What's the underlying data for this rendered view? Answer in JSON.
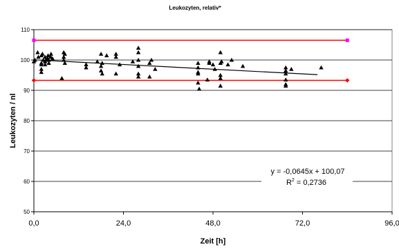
{
  "chart_data": {
    "type": "scatter",
    "title": "Leukozyten, relativ*",
    "xlabel": "Zeit [h]",
    "ylabel": "Leukozyten / nl",
    "xlim": [
      0,
      96
    ],
    "ylim": [
      50,
      110
    ],
    "x_ticks": [
      0,
      24,
      48,
      72,
      96
    ],
    "x_tick_labels": [
      "0,0",
      "24,0",
      "48,0",
      "72,0",
      "96,0"
    ],
    "y_ticks": [
      50,
      60,
      70,
      80,
      90,
      100,
      110
    ],
    "y_tick_labels": [
      "50",
      "60",
      "70",
      "80",
      "90",
      "100",
      "110"
    ],
    "grid": true,
    "legend": "none",
    "colors": {
      "points": "#000000",
      "trendline": "#000000",
      "upper_limit": "#ff0000",
      "upper_limit_marker": "#ff00ff",
      "lower_limit": "#ff0000",
      "lower_limit_marker": "#ff0000"
    },
    "series": [
      {
        "type": "scatter",
        "marker": "triangle",
        "points": [
          [
            0.0,
            99.5
          ],
          [
            0.3,
            100.0
          ],
          [
            1.0,
            102.5
          ],
          [
            1.2,
            101.0
          ],
          [
            2.0,
            99.0
          ],
          [
            2.0,
            101.5
          ],
          [
            2.0,
            98.5
          ],
          [
            2.0,
            97.0
          ],
          [
            2.0,
            96.0
          ],
          [
            2.3,
            102.0
          ],
          [
            2.5,
            100.0
          ],
          [
            3.0,
            99.5
          ],
          [
            3.0,
            98.5
          ],
          [
            3.0,
            101.0
          ],
          [
            3.2,
            100.0
          ],
          [
            3.7,
            100.5
          ],
          [
            3.8,
            101.5
          ],
          [
            4.0,
            99.0
          ],
          [
            4.0,
            100.0
          ],
          [
            4.5,
            101.0
          ],
          [
            4.6,
            102.0
          ],
          [
            5.0,
            100.5
          ],
          [
            7.5,
            94.0
          ],
          [
            8.0,
            101.0
          ],
          [
            8.0,
            102.5
          ],
          [
            8.0,
            100.0
          ],
          [
            8.3,
            99.0
          ],
          [
            8.3,
            102.0
          ],
          [
            14.0,
            98.5
          ],
          [
            14.0,
            97.5
          ],
          [
            17.0,
            99.5
          ],
          [
            18.0,
            98.0
          ],
          [
            18.0,
            96.5
          ],
          [
            18.0,
            102.0
          ],
          [
            18.3,
            99.0
          ],
          [
            18.3,
            95.5
          ],
          [
            19.5,
            101.5
          ],
          [
            22.0,
            102.0
          ],
          [
            22.0,
            101.0
          ],
          [
            22.0,
            95.5
          ],
          [
            23.0,
            98.5
          ],
          [
            26.5,
            99.5
          ],
          [
            28.0,
            104.0
          ],
          [
            28.0,
            102.5
          ],
          [
            28.0,
            100.0
          ],
          [
            28.0,
            98.0
          ],
          [
            28.0,
            95.5
          ],
          [
            28.0,
            94.5
          ],
          [
            31.0,
            99.0
          ],
          [
            31.0,
            94.5
          ],
          [
            31.5,
            100.0
          ],
          [
            32.5,
            97.0
          ],
          [
            44.0,
            99.0
          ],
          [
            44.0,
            97.5
          ],
          [
            44.0,
            96.0
          ],
          [
            44.0,
            95.5
          ],
          [
            44.0,
            92.5
          ],
          [
            44.3,
            90.5
          ],
          [
            46.5,
            93.5
          ],
          [
            47.0,
            99.0
          ],
          [
            47.0,
            99.5
          ],
          [
            48.0,
            98.5
          ],
          [
            48.5,
            97.0
          ],
          [
            50.0,
            102.5
          ],
          [
            50.0,
            99.0
          ],
          [
            50.0,
            95.0
          ],
          [
            50.0,
            94.0
          ],
          [
            50.0,
            91.5
          ],
          [
            50.3,
            99.5
          ],
          [
            52.0,
            98.5
          ],
          [
            53.0,
            100.0
          ],
          [
            56.0,
            98.0
          ],
          [
            67.5,
            97.5
          ],
          [
            67.5,
            96.5
          ],
          [
            67.5,
            95.5
          ],
          [
            67.5,
            93.5
          ],
          [
            67.5,
            92.0
          ],
          [
            67.5,
            91.5
          ],
          [
            69.0,
            97.0
          ],
          [
            77.0,
            97.5
          ]
        ]
      },
      {
        "type": "trendline",
        "equation": "y = -0,0645x + 100,07",
        "slope": -0.0645,
        "intercept": 100.07,
        "x_range": [
          0,
          76
        ]
      },
      {
        "type": "hline",
        "y": 106.5,
        "x_range": [
          0,
          84
        ],
        "marker": "square"
      },
      {
        "type": "hline",
        "y": 93.3,
        "x_range": [
          0,
          84
        ],
        "marker": "diamond"
      }
    ],
    "annotations": {
      "equation": "y = -0,0645x + 100,07",
      "r2_prefix": "R",
      "r2_superscript": "2",
      "r2_value": " = 0,2736"
    }
  }
}
